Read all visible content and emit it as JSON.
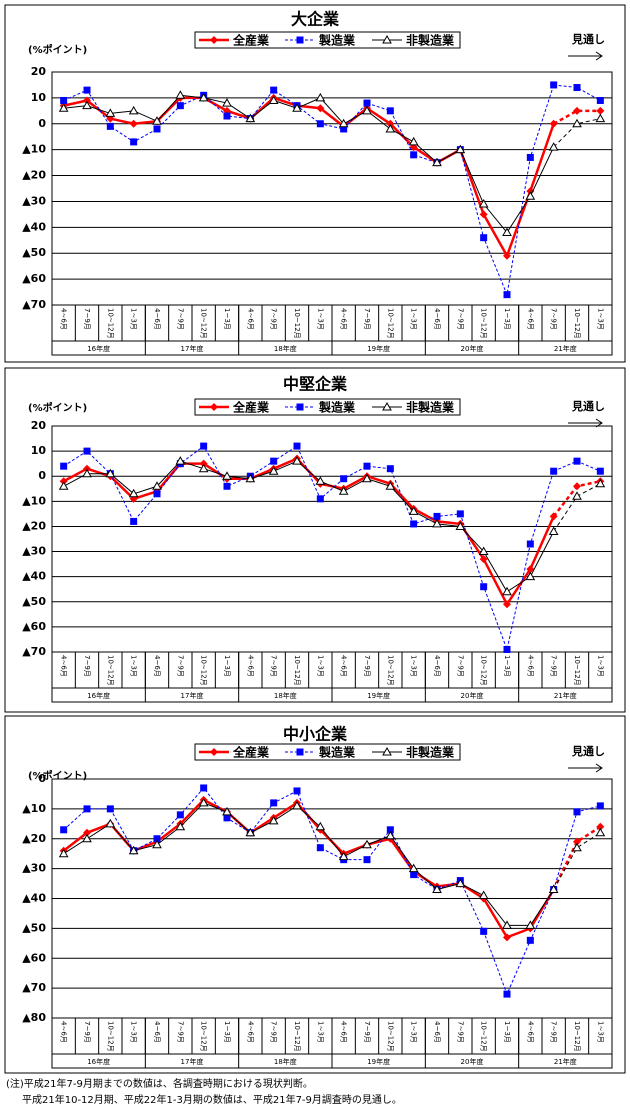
{
  "chart_data": [
    {
      "type": "line",
      "title": "大企業",
      "y_label": "(%ポイント)",
      "forecast_label": "見通し",
      "forecast_from_index": 21,
      "categories": [
        "4~6月",
        "7~9月",
        "10~12月",
        "1~3月",
        "4~6月",
        "7~9月",
        "10~12月",
        "1~3月",
        "4~6月",
        "7~9月",
        "10~12月",
        "1~3月",
        "4~6月",
        "7~9月",
        "10~12月",
        "1~3月",
        "4~6月",
        "7~9月",
        "10~12月",
        "1~3月",
        "4~6月",
        "7~9月",
        "10~12月",
        "1~3月"
      ],
      "category_groups": [
        "16年度",
        "17年度",
        "18年度",
        "19年度",
        "20年度",
        "21年度"
      ],
      "ylim": [
        -70,
        20
      ],
      "yticks": [
        20,
        10,
        0,
        {
          "value": -10,
          "label": "▲10"
        },
        {
          "value": -20,
          "label": "▲20"
        },
        {
          "value": -30,
          "label": "▲30"
        },
        {
          "value": -40,
          "label": "▲40"
        },
        {
          "value": -50,
          "label": "▲50"
        },
        {
          "value": -60,
          "label": "▲60"
        },
        {
          "value": -70,
          "label": "▲70"
        }
      ],
      "grid": true,
      "series": [
        {
          "name": "全産業",
          "color": "#ff0000",
          "marker": "diamond",
          "line_style": "solid",
          "values": [
            7,
            9,
            2,
            0,
            1,
            10,
            10,
            5,
            2,
            10,
            7,
            6,
            -1,
            6,
            0,
            -9,
            -15,
            -10,
            -35,
            -51,
            -26,
            0,
            5,
            5
          ]
        },
        {
          "name": "製造業",
          "color": "#0000ff",
          "marker": "square",
          "line_style": "dotted",
          "values": [
            9,
            13,
            -1,
            -7,
            -2,
            7,
            11,
            3,
            2,
            13,
            7,
            0,
            -2,
            8,
            5,
            -12,
            -15,
            -10,
            -44,
            -66,
            -13,
            15,
            14,
            9
          ]
        },
        {
          "name": "非製造業",
          "color": "#000000",
          "marker": "triangle",
          "line_style": "solid",
          "values": [
            6,
            7,
            4,
            5,
            1,
            11,
            10,
            8,
            2,
            9,
            6,
            10,
            0,
            5,
            -2,
            -7,
            -15,
            -10,
            -31,
            -42,
            -28,
            -9,
            0,
            2
          ]
        }
      ]
    },
    {
      "type": "line",
      "title": "中堅企業",
      "y_label": "(%ポイント)",
      "forecast_label": "見通し",
      "forecast_from_index": 21,
      "categories": [
        "4~6月",
        "7~9月",
        "10~12月",
        "1~3月",
        "4~6月",
        "7~9月",
        "10~12月",
        "1~3月",
        "4~6月",
        "7~9月",
        "10~12月",
        "1~3月",
        "4~6月",
        "7~9月",
        "10~12月",
        "1~3月",
        "4~6月",
        "7~9月",
        "10~12月",
        "1~3月",
        "4~6月",
        "7~9月",
        "10~12月",
        "1~3月"
      ],
      "category_groups": [
        "16年度",
        "17年度",
        "18年度",
        "19年度",
        "20年度",
        "21年度"
      ],
      "ylim": [
        -70,
        20
      ],
      "yticks": [
        20,
        10,
        0,
        {
          "value": -10,
          "label": "▲10"
        },
        {
          "value": -20,
          "label": "▲20"
        },
        {
          "value": -30,
          "label": "▲30"
        },
        {
          "value": -40,
          "label": "▲40"
        },
        {
          "value": -50,
          "label": "▲50"
        },
        {
          "value": -60,
          "label": "▲60"
        },
        {
          "value": -70,
          "label": "▲70"
        }
      ],
      "grid": true,
      "series": [
        {
          "name": "全産業",
          "color": "#ff0000",
          "marker": "diamond",
          "line_style": "solid",
          "values": [
            -2,
            3,
            0,
            -9,
            -6,
            5,
            5,
            -1,
            -1,
            3,
            7,
            -3,
            -5,
            0,
            -3,
            -13,
            -18,
            -19,
            -33,
            -51,
            -37,
            -16,
            -4,
            -2
          ]
        },
        {
          "name": "製造業",
          "color": "#0000ff",
          "marker": "square",
          "line_style": "dotted",
          "values": [
            4,
            10,
            1,
            -18,
            -7,
            5,
            12,
            -4,
            0,
            6,
            12,
            -9,
            -1,
            4,
            3,
            -19,
            -16,
            -15,
            -44,
            -69,
            -27,
            2,
            6,
            2
          ]
        },
        {
          "name": "非製造業",
          "color": "#000000",
          "marker": "triangle",
          "line_style": "solid",
          "values": [
            -4,
            1,
            1,
            -7,
            -4,
            6,
            3,
            0,
            -1,
            2,
            6,
            -2,
            -6,
            -1,
            -4,
            -14,
            -19,
            -20,
            -30,
            -46,
            -40,
            -22,
            -8,
            -3
          ]
        }
      ]
    },
    {
      "type": "line",
      "title": "中小企業",
      "y_label": "(%ポイント)",
      "forecast_label": "見通し",
      "forecast_from_index": 21,
      "categories": [
        "4~6月",
        "7~9月",
        "10~12月",
        "1~3月",
        "4~6月",
        "7~9月",
        "10~12月",
        "1~3月",
        "4~6月",
        "7~9月",
        "10~12月",
        "1~3月",
        "4~6月",
        "7~9月",
        "10~12月",
        "1~3月",
        "4~6月",
        "7~9月",
        "10~12月",
        "1~3月",
        "4~6月",
        "7~9月",
        "10~12月",
        "1~3月"
      ],
      "category_groups": [
        "16年度",
        "17年度",
        "18年度",
        "19年度",
        "20年度",
        "21年度"
      ],
      "ylim": [
        -80,
        0
      ],
      "yticks": [
        0,
        {
          "value": -10,
          "label": "▲10"
        },
        {
          "value": -20,
          "label": "▲20"
        },
        {
          "value": -30,
          "label": "▲30"
        },
        {
          "value": -40,
          "label": "▲40"
        },
        {
          "value": -50,
          "label": "▲50"
        },
        {
          "value": -60,
          "label": "▲60"
        },
        {
          "value": -70,
          "label": "▲70"
        },
        {
          "value": -80,
          "label": "▲80"
        }
      ],
      "grid": true,
      "series": [
        {
          "name": "全産業",
          "color": "#ff0000",
          "marker": "diamond",
          "line_style": "solid",
          "values": [
            -24,
            -18,
            -15,
            -24,
            -21,
            -15,
            -7,
            -11,
            -18,
            -13,
            -8,
            -17,
            -25,
            -22,
            -20,
            -31,
            -36,
            -35,
            -40,
            -53,
            -50,
            -37,
            -21,
            -16
          ]
        },
        {
          "name": "製造業",
          "color": "#0000ff",
          "marker": "square",
          "line_style": "dotted",
          "values": [
            -17,
            -10,
            -10,
            -24,
            -20,
            -12,
            -3,
            -13,
            -18,
            -8,
            -4,
            -23,
            -27,
            -27,
            -17,
            -32,
            -37,
            -34,
            -51,
            -72,
            -54,
            -37,
            -11,
            -9
          ]
        },
        {
          "name": "非製造業",
          "color": "#000000",
          "marker": "triangle",
          "line_style": "solid",
          "values": [
            -25,
            -20,
            -15,
            -24,
            -22,
            -16,
            -8,
            -11,
            -18,
            -14,
            -9,
            -16,
            -26,
            -22,
            -19,
            -30,
            -37,
            -35,
            -39,
            -49,
            -49,
            -37,
            -23,
            -18
          ]
        }
      ]
    }
  ],
  "notes": [
    "(注)平成21年7-9月期までの数値は、各調査時期における現状判断。",
    "平成21年10-12月期、平成22年1-3月期の数値は、平成21年7-9月調査時の見通し。"
  ]
}
